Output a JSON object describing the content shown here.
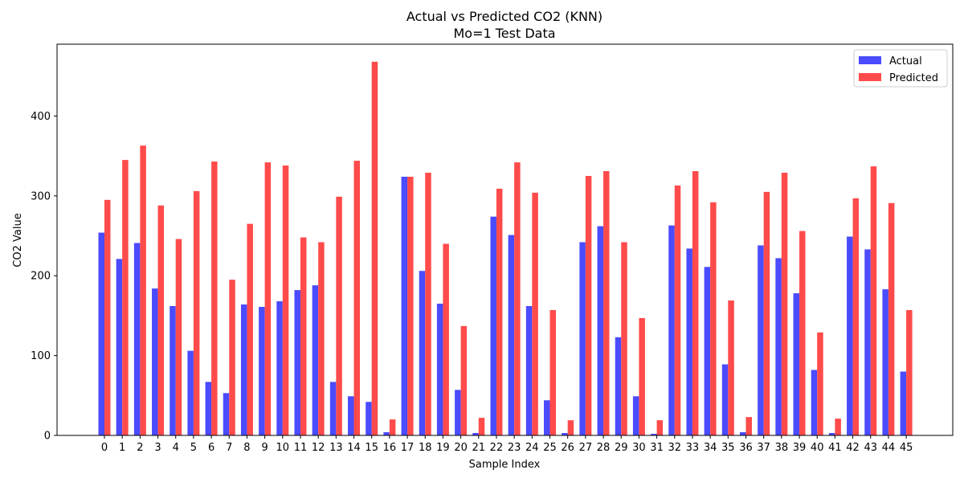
{
  "chart_data": {
    "type": "bar",
    "title": "Actual vs Predicted CO2 (KNN)",
    "subtitle": "Mo=1 Test Data",
    "xlabel": "Sample Index",
    "ylabel": "CO2 Value",
    "ylim": [
      0,
      490
    ],
    "yticks": [
      0,
      100,
      200,
      300,
      400
    ],
    "legend_position": "top-right",
    "grid": false,
    "categories": [
      "0",
      "1",
      "2",
      "3",
      "4",
      "5",
      "6",
      "7",
      "8",
      "9",
      "10",
      "11",
      "12",
      "13",
      "14",
      "15",
      "16",
      "17",
      "18",
      "19",
      "20",
      "21",
      "22",
      "23",
      "24",
      "25",
      "26",
      "27",
      "28",
      "29",
      "30",
      "31",
      "32",
      "33",
      "34",
      "35",
      "36",
      "37",
      "38",
      "39",
      "40",
      "41",
      "42",
      "43",
      "44",
      "45"
    ],
    "series": [
      {
        "name": "Actual",
        "color": "#4b4bff",
        "values": [
          254,
          221,
          241,
          184,
          162,
          106,
          67,
          53,
          164,
          161,
          168,
          182,
          188,
          67,
          49,
          42,
          4,
          324,
          206,
          165,
          57,
          3,
          274,
          251,
          162,
          44,
          3,
          242,
          262,
          123,
          49,
          2,
          263,
          234,
          211,
          89,
          4,
          238,
          222,
          178,
          82,
          3,
          249,
          233,
          183,
          80
        ]
      },
      {
        "name": "Predicted",
        "color": "#ff4b4b",
        "values": [
          295,
          345,
          363,
          288,
          246,
          306,
          343,
          195,
          265,
          342,
          338,
          248,
          242,
          299,
          344,
          468,
          20,
          324,
          329,
          240,
          137,
          22,
          309,
          342,
          304,
          157,
          19,
          325,
          331,
          242,
          147,
          19,
          313,
          331,
          292,
          169,
          23,
          305,
          329,
          256,
          129,
          21,
          297,
          337,
          291,
          157
        ]
      }
    ]
  }
}
